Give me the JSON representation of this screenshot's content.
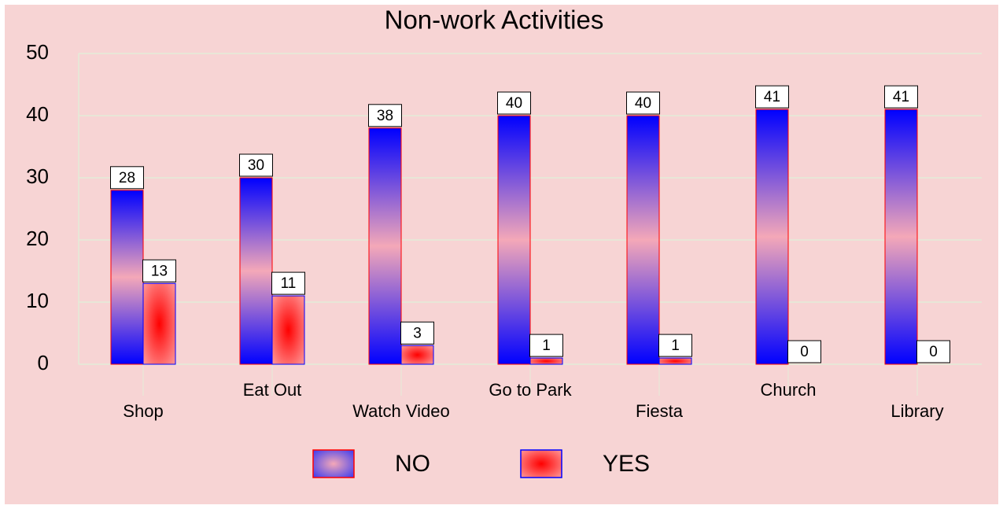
{
  "chart_data": {
    "type": "bar",
    "title": "Non-work Activities",
    "categories": [
      "Shop",
      "Eat Out",
      "Watch Video",
      "Go to Park",
      "Fiesta",
      "Church",
      "Library"
    ],
    "series": [
      {
        "name": "NO",
        "color": "#0000ff",
        "values": [
          28,
          30,
          38,
          40,
          40,
          41,
          41
        ]
      },
      {
        "name": "YES",
        "color": "#ff0000",
        "values": [
          13,
          11,
          3,
          1,
          1,
          0,
          0
        ]
      }
    ],
    "ylim": [
      0,
      50
    ],
    "yticks": [
      0,
      10,
      20,
      30,
      40,
      50
    ],
    "grid": true,
    "legend": "bottom"
  }
}
